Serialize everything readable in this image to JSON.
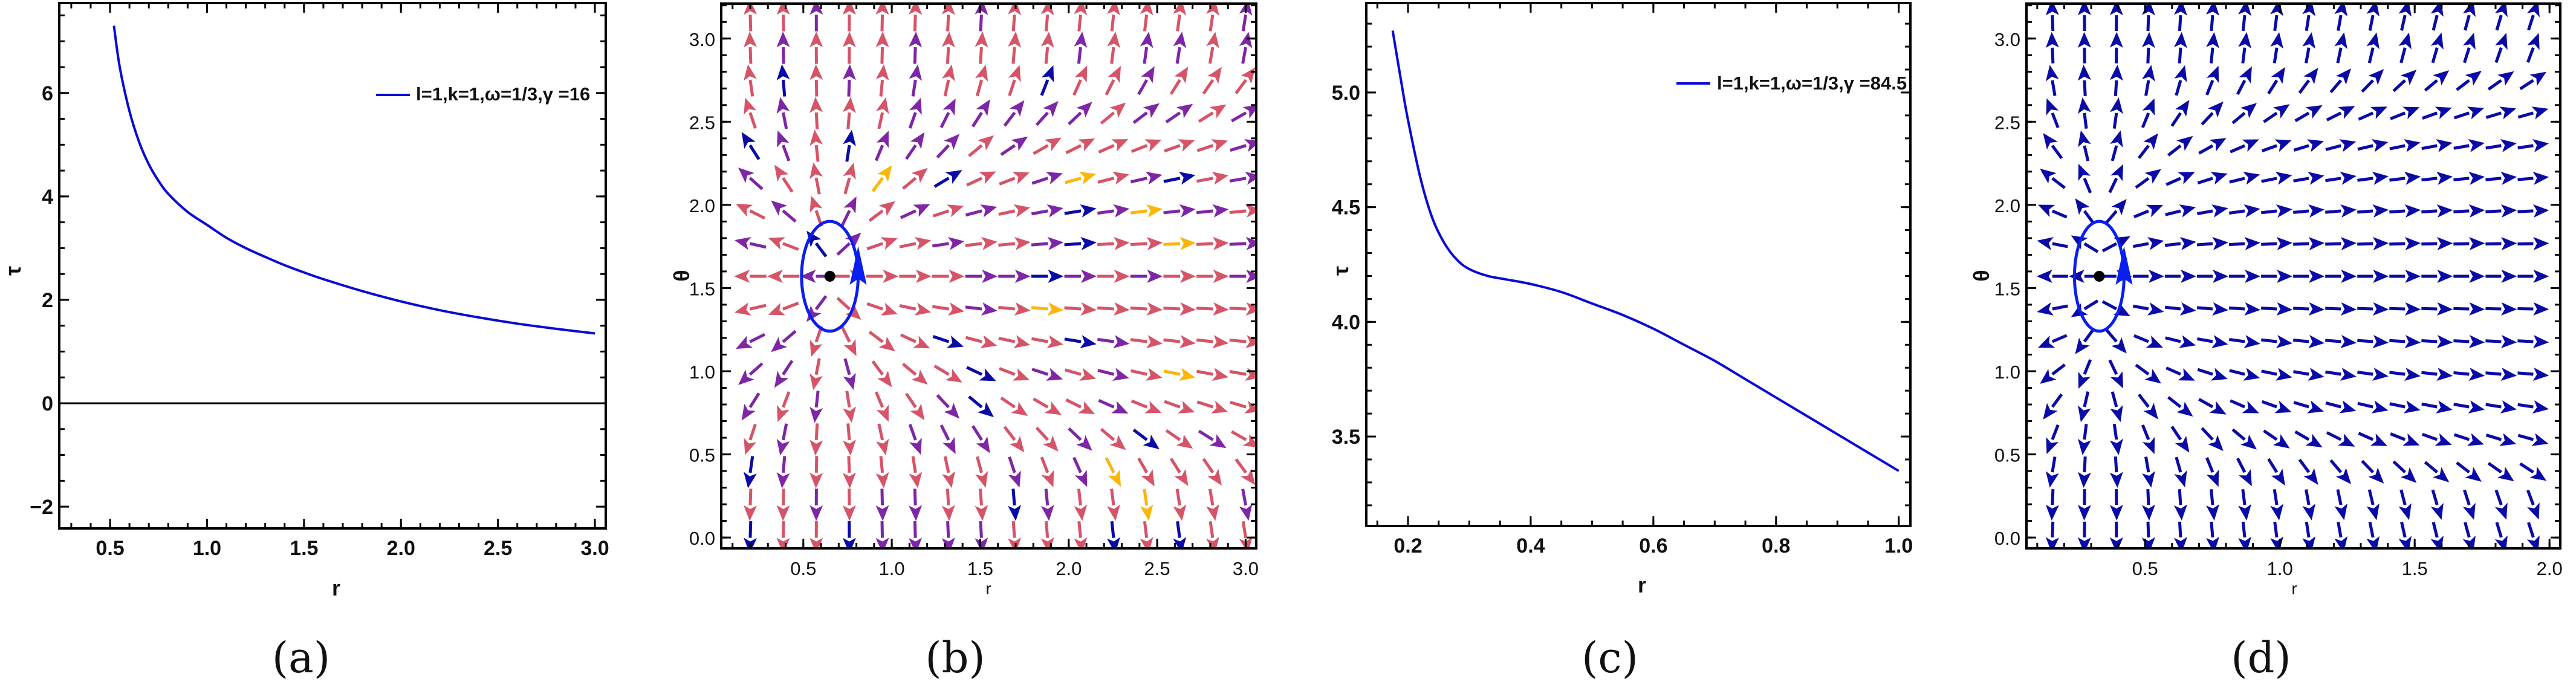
{
  "chart_data": [
    {
      "id": "a",
      "type": "line",
      "caption": "(a)",
      "xlabel": "r",
      "ylabel": "τ",
      "xlim": [
        0.238,
        3.056
      ],
      "ylim": [
        -2.42,
        7.74
      ],
      "xticks": [
        0.5,
        1.0,
        1.5,
        2.0,
        2.5,
        3.0
      ],
      "xtick_labels": [
        "0.5",
        "1.0",
        "1.5",
        "2.0",
        "2.5",
        "3.0"
      ],
      "yticks": [
        -2,
        0,
        2,
        4,
        6
      ],
      "ytick_labels": [
        "-2",
        "0",
        "2",
        "4",
        "6"
      ],
      "xminor_step": 0.1,
      "yminor_step": 0.5,
      "zero_line": true,
      "legend": {
        "label": "l=1,k=1,ω=1/3,γ =16",
        "position": "top-right"
      },
      "color": "#0a0ad6",
      "series": [
        {
          "name": "l=1,k=1,ω=1/3,γ =16",
          "x": [
            0.52,
            0.55,
            0.6,
            0.65,
            0.7,
            0.75,
            0.8,
            0.9,
            1.0,
            1.1,
            1.2,
            1.3,
            1.4,
            1.5,
            1.6,
            1.8,
            2.0,
            2.2,
            2.4,
            2.6,
            2.8,
            3.0
          ],
          "y": [
            7.3,
            6.5,
            5.65,
            5.05,
            4.62,
            4.3,
            4.05,
            3.7,
            3.45,
            3.2,
            3.0,
            2.83,
            2.67,
            2.53,
            2.4,
            2.17,
            1.97,
            1.8,
            1.66,
            1.54,
            1.44,
            1.35
          ]
        }
      ]
    },
    {
      "id": "b",
      "type": "vector_field",
      "caption": "(b)",
      "xlabel": "r",
      "ylabel": "θ",
      "xlim": [
        0.036,
        3.06
      ],
      "ylim": [
        -0.065,
        3.21
      ],
      "xticks": [
        0.5,
        1.0,
        1.5,
        2.0,
        2.5,
        3.0
      ],
      "xtick_labels": [
        "0.5",
        "1.0",
        "1.5",
        "2.0",
        "2.5",
        "3.0"
      ],
      "yticks": [
        0.0,
        0.5,
        1.0,
        1.5,
        2.0,
        2.5,
        3.0
      ],
      "ytick_labels": [
        "0.0",
        "0.5",
        "1.0",
        "1.5",
        "2.0",
        "2.5",
        "3.0"
      ],
      "xminor_step": 0.1,
      "yminor_step": 0.1,
      "field": {
        "r_start": 0.2,
        "r_end": 3.0,
        "columns": 16,
        "theta_rows": 17,
        "r0": 0.65,
        "k": 2.0
      },
      "arrow_colors": [
        "#d65468",
        "#7e26a6",
        "#0a0aa6",
        "#fbb60a"
      ],
      "critical_point": {
        "r": 0.65,
        "theta": 1.5708
      },
      "contour": {
        "rx": 0.16,
        "ry": 0.33,
        "color": "#0a1ef0"
      }
    },
    {
      "id": "c",
      "type": "line",
      "caption": "(c)",
      "xlabel": "r",
      "ylabel": "τ",
      "xlim": [
        0.132,
        1.019
      ],
      "ylim": [
        3.11,
        5.39
      ],
      "xticks": [
        0.2,
        0.4,
        0.6,
        0.8,
        1.0
      ],
      "xtick_labels": [
        "0.2",
        "0.4",
        "0.6",
        "0.8",
        "1.0"
      ],
      "yticks": [
        3.5,
        4.0,
        4.5,
        5.0
      ],
      "ytick_labels": [
        "3.5",
        "4.0",
        "4.5",
        "5.0"
      ],
      "xminor_step": 0.05,
      "yminor_step": 0.1,
      "zero_line": false,
      "legend": {
        "label": "l=1,k=1,ω=1/3,γ =84.5",
        "position": "top-right"
      },
      "color": "#0a0ad6",
      "series": [
        {
          "name": "l=1,k=1,ω=1/3,γ =84.5",
          "x": [
            0.175,
            0.19,
            0.2,
            0.22,
            0.24,
            0.26,
            0.28,
            0.3,
            0.33,
            0.36,
            0.4,
            0.45,
            0.5,
            0.55,
            0.6,
            0.65,
            0.7,
            0.75,
            0.8,
            0.85,
            0.9,
            0.95,
            1.0
          ],
          "y": [
            5.27,
            5.03,
            4.88,
            4.63,
            4.45,
            4.34,
            4.27,
            4.23,
            4.2,
            4.185,
            4.165,
            4.13,
            4.08,
            4.03,
            3.97,
            3.9,
            3.83,
            3.75,
            3.67,
            3.59,
            3.51,
            3.43,
            3.35
          ]
        }
      ]
    },
    {
      "id": "d",
      "type": "vector_field",
      "caption": "(d)",
      "xlabel": "r",
      "ylabel": "θ",
      "xlim": [
        0.06,
        2.04
      ],
      "ylim": [
        -0.065,
        3.21
      ],
      "xticks": [
        0.5,
        1.0,
        1.5,
        2.0
      ],
      "xtick_labels": [
        "0.5",
        "1.0",
        "1.5",
        "2.0"
      ],
      "yticks": [
        0.0,
        0.5,
        1.0,
        1.5,
        2.0,
        2.5,
        3.0
      ],
      "ytick_labels": [
        "0.0",
        "0.5",
        "1.0",
        "1.5",
        "2.0",
        "2.5",
        "3.0"
      ],
      "xminor_step": 0.1,
      "yminor_step": 0.1,
      "field": {
        "r_start": 0.156,
        "r_end": 1.94,
        "columns": 16,
        "theta_rows": 17,
        "r0": 0.33,
        "k": 6.0
      },
      "arrow_colors": [
        "#0a0aa6"
      ],
      "critical_point": {
        "r": 0.33,
        "theta": 1.5708
      },
      "contour": {
        "rx": 0.092,
        "ry": 0.33,
        "color": "#0a1ef0"
      }
    }
  ]
}
